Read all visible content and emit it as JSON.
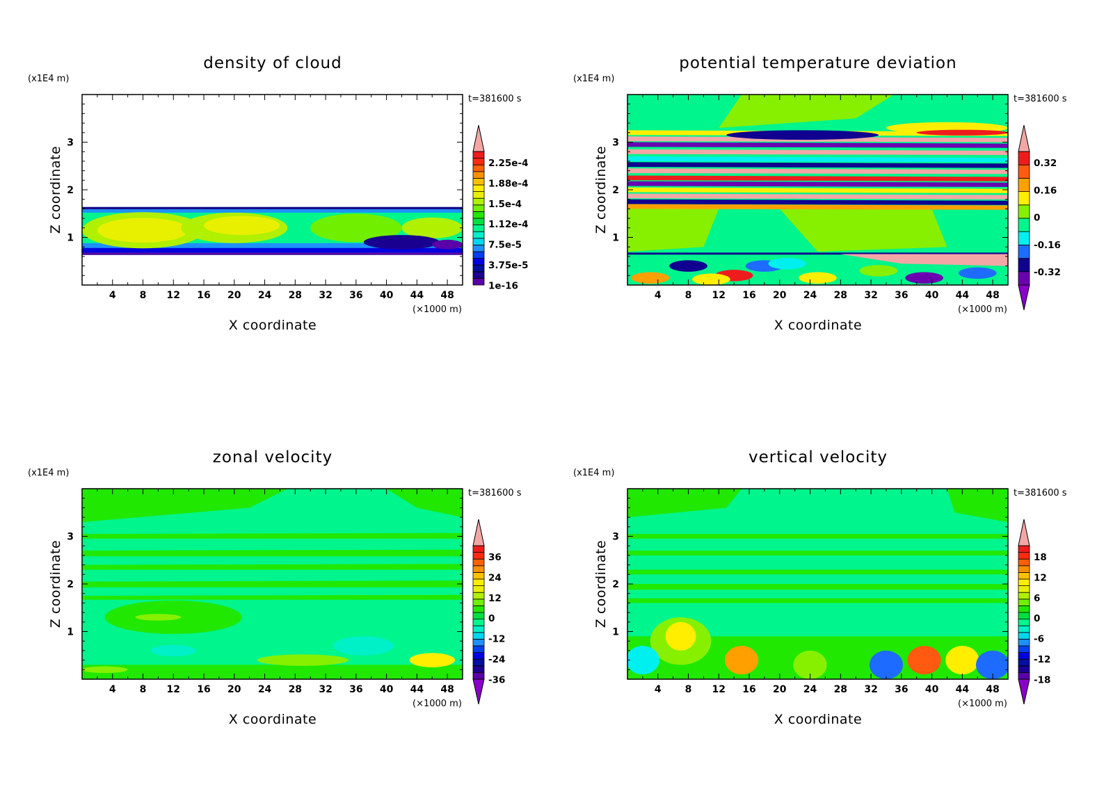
{
  "chart_data": [
    {
      "type": "heatmap",
      "title": "density of cloud",
      "xlabel": "X coordinate",
      "ylabel": "Z coordinate",
      "x_unit": "(×1000 m)",
      "y_unit": "(x1E4 m)",
      "time_label": "t=381600 s",
      "xlim": [
        0,
        50
      ],
      "ylim": [
        0,
        4
      ],
      "x_ticks": [
        "4",
        "8",
        "12",
        "16",
        "20",
        "24",
        "28",
        "32",
        "36",
        "40",
        "44",
        "48"
      ],
      "y_ticks": [
        "1",
        "2",
        "3"
      ],
      "colorbar_labels": [
        "2.25e-4",
        "1.88e-4",
        "1.5e-4",
        "1.12e-4",
        "7.5e-5",
        "3.75e-5",
        "1e-16"
      ],
      "colorbar_levels": 20,
      "colorbar_extend": "max",
      "cloud_layer_z": [
        0.63,
        1.64
      ]
    },
    {
      "type": "heatmap",
      "title": "potential temperature deviation",
      "xlabel": "X coordinate",
      "ylabel": "Z coordinate",
      "x_unit": "(×1000 m)",
      "y_unit": "(x1E4 m)",
      "time_label": "t=381600 s",
      "xlim": [
        0,
        50
      ],
      "ylim": [
        0,
        4
      ],
      "x_ticks": [
        "4",
        "8",
        "12",
        "16",
        "20",
        "24",
        "28",
        "32",
        "36",
        "40",
        "44",
        "48"
      ],
      "y_ticks": [
        "1",
        "2",
        "3"
      ],
      "colorbar_labels": [
        "0.32",
        "0.16",
        "0",
        "-0.16",
        "-0.32"
      ],
      "colorbar_levels": 10,
      "colorbar_extend": "both"
    },
    {
      "type": "heatmap",
      "title": "zonal velocity",
      "xlabel": "X coordinate",
      "ylabel": "Z coordinate",
      "x_unit": "(×1000 m)",
      "y_unit": "(x1E4 m)",
      "time_label": "t=381600 s",
      "xlim": [
        0,
        50
      ],
      "ylim": [
        0,
        4
      ],
      "x_ticks": [
        "4",
        "8",
        "12",
        "16",
        "20",
        "24",
        "28",
        "32",
        "36",
        "40",
        "44",
        "48"
      ],
      "y_ticks": [
        "1",
        "2",
        "3"
      ],
      "colorbar_labels": [
        "36",
        "24",
        "12",
        "0",
        "-12",
        "-24",
        "-36"
      ],
      "colorbar_levels": 20,
      "colorbar_extend": "both"
    },
    {
      "type": "heatmap",
      "title": "vertical velocity",
      "xlabel": "X coordinate",
      "ylabel": "Z coordinate",
      "x_unit": "(×1000 m)",
      "y_unit": "(x1E4 m)",
      "time_label": "t=381600 s",
      "xlim": [
        0,
        50
      ],
      "ylim": [
        0,
        4
      ],
      "x_ticks": [
        "4",
        "8",
        "12",
        "16",
        "20",
        "24",
        "28",
        "32",
        "36",
        "40",
        "44",
        "48"
      ],
      "y_ticks": [
        "1",
        "2",
        "3"
      ],
      "colorbar_labels": [
        "18",
        "12",
        "6",
        "0",
        "-6",
        "-12",
        "-18"
      ],
      "colorbar_levels": 20,
      "colorbar_extend": "both"
    }
  ],
  "colors": {
    "pink": "#f4a6a6",
    "red": "#ee1c1c",
    "orange": "#ff8a00",
    "yellow": "#ffee00",
    "lime": "#86f000",
    "green": "#22e800",
    "springgreen": "#00f58c",
    "cyan": "#00f0f0",
    "lightblue": "#1e90ff",
    "blue": "#0000e0",
    "navy": "#100090",
    "purple": "#6a00b0"
  }
}
